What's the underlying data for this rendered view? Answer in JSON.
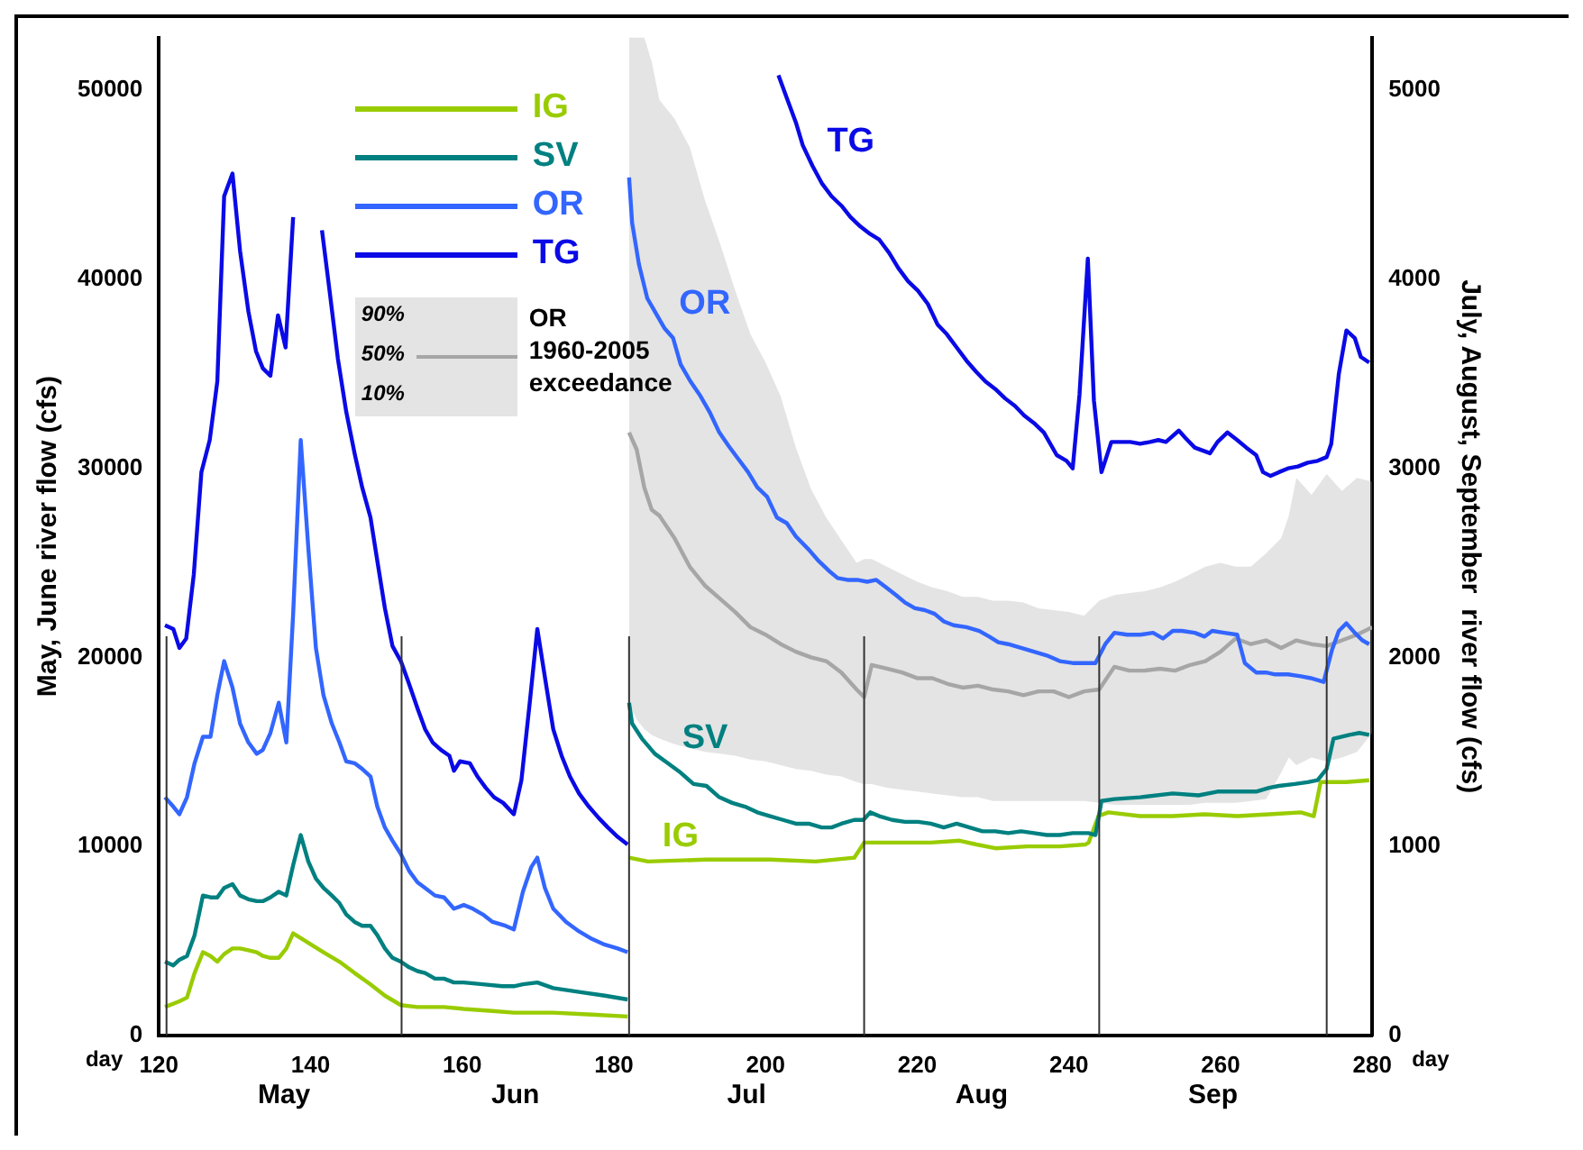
{
  "chart_data": {
    "type": "line",
    "xlabel": "day",
    "ylabel": "May, June river flow (cfs)",
    "y2label": "July, August, September  river flow (cfs)",
    "xlim": [
      120,
      280
    ],
    "xticks": [
      120,
      140,
      160,
      180,
      200,
      220,
      240,
      260,
      280
    ],
    "ylim": [
      0,
      52800
    ],
    "yticks": [
      0,
      10000,
      20000,
      30000,
      40000,
      50000
    ],
    "y2lim": [
      0,
      5280
    ],
    "y2ticks": [
      0,
      1000,
      2000,
      3000,
      4000,
      5000
    ],
    "grid": false,
    "legend": "top left",
    "marker": "none",
    "line_style": "solid",
    "series": [
      {
        "name": "IG",
        "color": "#99cc00",
        "axis": "y",
        "x": [
          120.8,
          122.7,
          123.7,
          124.7,
          125.8,
          126.8,
          127.7,
          128.6,
          129.7,
          130.7,
          131.8,
          132.9,
          133.7,
          134.7,
          135.8,
          136.8,
          137.7,
          139.7,
          141.7,
          143.8,
          145.8,
          147.9,
          149.8,
          151.9,
          154.1,
          157.6,
          160.2,
          163.6,
          166.8,
          172,
          177.1,
          181.8
        ],
        "values": [
          1500,
          1800,
          2000,
          3300,
          4400,
          4200,
          3900,
          4300,
          4600,
          4600,
          4500,
          4400,
          4200,
          4100,
          4100,
          4600,
          5400,
          4900,
          4400,
          3900,
          3300,
          2700,
          2100,
          1600,
          1500,
          1500,
          1400,
          1300,
          1200,
          1200,
          1100,
          1000
        ]
      },
      {
        "name": "SV",
        "color": "#008080",
        "axis": "y",
        "x": [
          120.8,
          121.9,
          122.7,
          123.7,
          124.7,
          125.8,
          126.8,
          127.7,
          128.6,
          129.7,
          130.7,
          131.8,
          132.9,
          133.7,
          134.7,
          135.8,
          136.8,
          137.7,
          138.7,
          139.7,
          140.7,
          141.7,
          142.8,
          143.8,
          144.7,
          145.8,
          146.8,
          147.9,
          148.8,
          149.8,
          150.8,
          151.9,
          153,
          154.1,
          155.1,
          156.4,
          157.6,
          158.9,
          160.2,
          162.7,
          165.3,
          166.8,
          168,
          169.9,
          172,
          175.4,
          178.8,
          181.8
        ],
        "values": [
          3900,
          3700,
          4000,
          4200,
          5300,
          7400,
          7300,
          7300,
          7800,
          8000,
          7400,
          7200,
          7100,
          7100,
          7300,
          7600,
          7400,
          9000,
          10600,
          9200,
          8300,
          7800,
          7400,
          7000,
          6400,
          6000,
          5800,
          5800,
          5300,
          4600,
          4100,
          3900,
          3600,
          3400,
          3300,
          3000,
          3000,
          2800,
          2800,
          2700,
          2600,
          2600,
          2700,
          2800,
          2500,
          2300,
          2100,
          1900
        ]
      },
      {
        "name": "OR",
        "color": "#3366ff",
        "axis": "y",
        "x": [
          120.8,
          121.9,
          122.7,
          123.7,
          124.7,
          125.8,
          126.8,
          127.7,
          128.6,
          129.7,
          130.7,
          131.8,
          132.9,
          133.7,
          134.7,
          135.8,
          136.8,
          137.7,
          138.7,
          139.7,
          140.7,
          141.7,
          142.8,
          143.8,
          144.7,
          145.8,
          146.8,
          147.9,
          148.8,
          149.8,
          150.8,
          151.9,
          153,
          154.1,
          155.1,
          156.4,
          157.6,
          158.9,
          160.2,
          161.4,
          162.7,
          164,
          165.7,
          166.8,
          168,
          169.1,
          169.9,
          170.9,
          172,
          173.7,
          175.4,
          177.1,
          178.8,
          180.5,
          181.8
        ],
        "values": [
          12600,
          12100,
          11700,
          12600,
          14400,
          15800,
          15800,
          18000,
          19800,
          18400,
          16500,
          15500,
          14900,
          15100,
          16000,
          17600,
          15500,
          22300,
          31500,
          25800,
          20500,
          18000,
          16500,
          15500,
          14500,
          14400,
          14100,
          13700,
          12100,
          11000,
          10300,
          9600,
          8700,
          8100,
          7800,
          7400,
          7300,
          6700,
          6900,
          6700,
          6400,
          6000,
          5800,
          5600,
          7600,
          8900,
          9400,
          7800,
          6700,
          6000,
          5500,
          5100,
          4800,
          4600,
          4400
        ]
      },
      {
        "name": "TG",
        "color": "#0a0ae6",
        "axis": "y",
        "x": [
          120.8,
          121.9,
          122.7,
          123.6,
          124.6,
          125.6,
          126.7,
          127.7,
          128.6,
          129.7,
          130.7,
          131.8,
          132.8,
          133.7,
          134.7,
          135.7,
          136.7,
          137.7,
          138.2,
          140.2,
          141.5,
          142.5,
          143.6,
          144.7,
          145.8,
          146.8,
          147.9,
          148.8,
          149.8,
          150.8,
          151.9,
          152.9,
          154.1,
          155.1,
          156.1,
          157.2,
          158.3,
          158.9,
          159.7,
          161,
          162,
          163.1,
          164.2,
          165.4,
          166.8,
          167.8,
          168.9,
          169.9,
          171,
          172,
          173.1,
          174.2,
          175.4,
          176.7,
          178,
          179.2,
          180.5,
          181.8
        ],
        "values": [
          21700,
          21500,
          20500,
          21000,
          24400,
          29800,
          31500,
          34600,
          44400,
          45600,
          41500,
          38300,
          36200,
          35300,
          34900,
          38100,
          36400,
          43300,
          null,
          null,
          42600,
          39400,
          35800,
          33000,
          30800,
          29000,
          27400,
          25100,
          22600,
          20600,
          19800,
          18700,
          17300,
          16200,
          15500,
          15100,
          14800,
          14000,
          14500,
          14400,
          13700,
          13100,
          12600,
          12300,
          11700,
          13500,
          17600,
          21500,
          18700,
          16200,
          14800,
          13700,
          12800,
          12100,
          11500,
          11000,
          10500,
          10100
        ]
      },
      {
        "name": "TG",
        "color": "#0a0ae6",
        "axis": "y2",
        "x": [
          201.7,
          202.8,
          204,
          204.9,
          206.2,
          207.4,
          208.7,
          210,
          211.2,
          212.5,
          213.8,
          215,
          216.3,
          217.5,
          218.8,
          220.1,
          221.4,
          222.7,
          223.9,
          225.2,
          226.5,
          227.8,
          229,
          230.3,
          231.6,
          232.9,
          234.1,
          235.4,
          236.7,
          238.4,
          239.7,
          240.5,
          241.4,
          242.5,
          243.3,
          244.3,
          245.6,
          246.9,
          248.1,
          249.4,
          250.7,
          251.8,
          252.8,
          254.5,
          255.4,
          256.6,
          258.6,
          259.6,
          260.9,
          262.2,
          263.4,
          264.7,
          265.6,
          266.6,
          267.7,
          268.9,
          270.2,
          271.5,
          272.8,
          274,
          274.6,
          275.6,
          276.6,
          277.7,
          278.5,
          279.6
        ],
        "values": [
          5080,
          4960,
          4830,
          4710,
          4600,
          4510,
          4440,
          4390,
          4330,
          4280,
          4240,
          4210,
          4140,
          4060,
          3990,
          3940,
          3870,
          3760,
          3710,
          3640,
          3570,
          3510,
          3460,
          3420,
          3370,
          3330,
          3280,
          3240,
          3190,
          3070,
          3040,
          3000,
          3390,
          4110,
          3360,
          2980,
          3140,
          3140,
          3140,
          3130,
          3140,
          3150,
          3140,
          3200,
          3160,
          3110,
          3080,
          3140,
          3190,
          3150,
          3110,
          3070,
          2980,
          2960,
          2980,
          3000,
          3010,
          3030,
          3040,
          3060,
          3130,
          3500,
          3730,
          3690,
          3590,
          3560
        ]
      },
      {
        "name": "OR",
        "color": "#3366ff",
        "axis": "y2",
        "x": [
          182,
          182.4,
          183.3,
          184.4,
          185.4,
          186.7,
          187.8,
          188.8,
          190.1,
          191.3,
          192.6,
          193.9,
          195.1,
          196.4,
          197.7,
          198.9,
          200.2,
          201.5,
          202.8,
          204,
          205.7,
          207,
          208.3,
          209.5,
          210.8,
          212.1,
          213.4,
          214.6,
          215.9,
          217.2,
          218.4,
          219.7,
          221,
          222.3,
          223.5,
          224.8,
          226.5,
          228.2,
          229.5,
          230.7,
          232,
          233.7,
          235.4,
          237.1,
          238.8,
          240.5,
          242.2,
          243.5,
          244.8,
          246,
          247.7,
          249.4,
          251.1,
          252.4,
          253.7,
          254.9,
          256.6,
          257.9,
          258.9,
          260.5,
          262.2,
          263.2,
          264.7,
          266,
          267.2,
          268.9,
          270.6,
          271.9,
          272.8,
          273.6,
          274.7,
          275.6,
          276.6,
          277.7,
          278.7,
          279.6
        ],
        "values": [
          4540,
          4300,
          4080,
          3900,
          3830,
          3740,
          3690,
          3550,
          3460,
          3390,
          3300,
          3190,
          3120,
          3050,
          2980,
          2900,
          2850,
          2740,
          2710,
          2640,
          2570,
          2510,
          2460,
          2420,
          2410,
          2410,
          2400,
          2410,
          2370,
          2330,
          2290,
          2260,
          2250,
          2230,
          2190,
          2170,
          2160,
          2140,
          2110,
          2080,
          2070,
          2050,
          2030,
          2010,
          1980,
          1970,
          1970,
          1970,
          2070,
          2130,
          2120,
          2120,
          2130,
          2100,
          2140,
          2140,
          2130,
          2110,
          2140,
          2130,
          2120,
          1970,
          1920,
          1920,
          1910,
          1910,
          1900,
          1890,
          1880,
          1870,
          2040,
          2140,
          2180,
          2130,
          2090,
          2070
        ]
      },
      {
        "name": "SV",
        "color": "#008080",
        "axis": "y2",
        "x": [
          182,
          182.4,
          183.7,
          185.4,
          187.1,
          188.8,
          190.5,
          192.2,
          193.9,
          195.6,
          197.3,
          198.9,
          200.6,
          202.3,
          204,
          205.7,
          207.4,
          208.7,
          210,
          211.7,
          212.9,
          213.8,
          215,
          216.7,
          218.4,
          220.1,
          221.8,
          223.5,
          225.2,
          226.9,
          228.6,
          230.3,
          232,
          233.7,
          235.4,
          237.1,
          238.8,
          240.5,
          242.6,
          243.5,
          244.3,
          246,
          249.4,
          253.7,
          257.1,
          259.6,
          262.2,
          264.7,
          266.4,
          267.7,
          269.8,
          271.5,
          272.8,
          274,
          274.9,
          277,
          278.3,
          279.6
        ],
        "values": [
          1760,
          1650,
          1570,
          1490,
          1440,
          1390,
          1330,
          1320,
          1260,
          1230,
          1210,
          1180,
          1160,
          1140,
          1120,
          1120,
          1100,
          1100,
          1120,
          1140,
          1140,
          1180,
          1160,
          1140,
          1130,
          1130,
          1120,
          1100,
          1120,
          1100,
          1080,
          1080,
          1070,
          1080,
          1070,
          1060,
          1060,
          1070,
          1070,
          1060,
          1240,
          1250,
          1260,
          1280,
          1270,
          1290,
          1290,
          1290,
          1310,
          1320,
          1330,
          1340,
          1350,
          1410,
          1570,
          1590,
          1600,
          1590
        ]
      },
      {
        "name": "IG",
        "color": "#99cc00",
        "axis": "y2",
        "x": [
          182,
          184.5,
          192.2,
          200.6,
          206.6,
          211.7,
          213,
          217.5,
          221.8,
          225.6,
          227.8,
          230.3,
          234.5,
          238.8,
          242.2,
          242.6,
          243.9,
          245.2,
          249.4,
          253.7,
          257.9,
          262.2,
          266.4,
          270.6,
          272.3,
          273.2,
          276.6,
          279.6
        ],
        "values": [
          940,
          920,
          930,
          930,
          920,
          940,
          1020,
          1020,
          1020,
          1030,
          1010,
          990,
          1000,
          1000,
          1010,
          1020,
          1160,
          1180,
          1160,
          1160,
          1170,
          1160,
          1170,
          1180,
          1160,
          1340,
          1340,
          1350
        ]
      },
      {
        "name": "OR 1960-2005 exceedance",
        "color": "#a6a6a6",
        "axis": "y2",
        "x": [
          182,
          183,
          184,
          185,
          186,
          188,
          190,
          192,
          194,
          196,
          198,
          200,
          202,
          204,
          206,
          208,
          210,
          212,
          213,
          214,
          216,
          218,
          220,
          222,
          224,
          226,
          228,
          230,
          232,
          234,
          236,
          238,
          240,
          242,
          244,
          246,
          248,
          250,
          252,
          254,
          256,
          258,
          260,
          262,
          264,
          266,
          268,
          269,
          270,
          272,
          274,
          276,
          278,
          280
        ],
        "values": [
          3190,
          3100,
          2900,
          2780,
          2750,
          2630,
          2480,
          2380,
          2310,
          2240,
          2160,
          2120,
          2070,
          2030,
          2000,
          1980,
          1920,
          1830,
          1790,
          1960,
          1940,
          1920,
          1890,
          1890,
          1860,
          1840,
          1850,
          1830,
          1820,
          1800,
          1820,
          1820,
          1790,
          1820,
          1830,
          1950,
          1930,
          1930,
          1940,
          1930,
          1960,
          1980,
          2030,
          2100,
          2070,
          2090,
          2050,
          2070,
          2090,
          2070,
          2060,
          2090,
          2120,
          2160
        ],
        "upper": [
          5280,
          5280,
          5280,
          5150,
          4950,
          4850,
          4700,
          4420,
          4190,
          3940,
          3710,
          3560,
          3380,
          3110,
          2890,
          2740,
          2620,
          2500,
          2520,
          2520,
          2480,
          2440,
          2400,
          2370,
          2350,
          2320,
          2320,
          2300,
          2300,
          2290,
          2260,
          2250,
          2240,
          2220,
          2300,
          2330,
          2340,
          2350,
          2370,
          2400,
          2440,
          2480,
          2500,
          2480,
          2480,
          2550,
          2630,
          2750,
          2950,
          2860,
          2970,
          2880,
          2950,
          2930
        ],
        "lower": [
          1760,
          1670,
          1620,
          1590,
          1570,
          1540,
          1520,
          1500,
          1490,
          1480,
          1460,
          1450,
          1430,
          1410,
          1400,
          1380,
          1370,
          1340,
          1330,
          1330,
          1310,
          1300,
          1290,
          1280,
          1270,
          1260,
          1260,
          1240,
          1240,
          1240,
          1240,
          1240,
          1240,
          1240,
          1230,
          1220,
          1220,
          1220,
          1220,
          1220,
          1220,
          1230,
          1230,
          1230,
          1240,
          1250,
          1390,
          1470,
          1430,
          1470,
          1450,
          1470,
          1500,
          1600
        ]
      }
    ],
    "ref_lines": [
      {
        "axis": "x",
        "value": 121
      },
      {
        "axis": "x",
        "value": 152
      },
      {
        "axis": "x",
        "value": 182
      },
      {
        "axis": "x",
        "value": 213
      },
      {
        "axis": "x",
        "value": 244
      },
      {
        "axis": "x",
        "value": 274
      }
    ],
    "annotations": [
      "90%",
      "50%",
      "10%",
      "May",
      "Jun",
      "Jul",
      "Aug",
      "Sep"
    ]
  }
}
